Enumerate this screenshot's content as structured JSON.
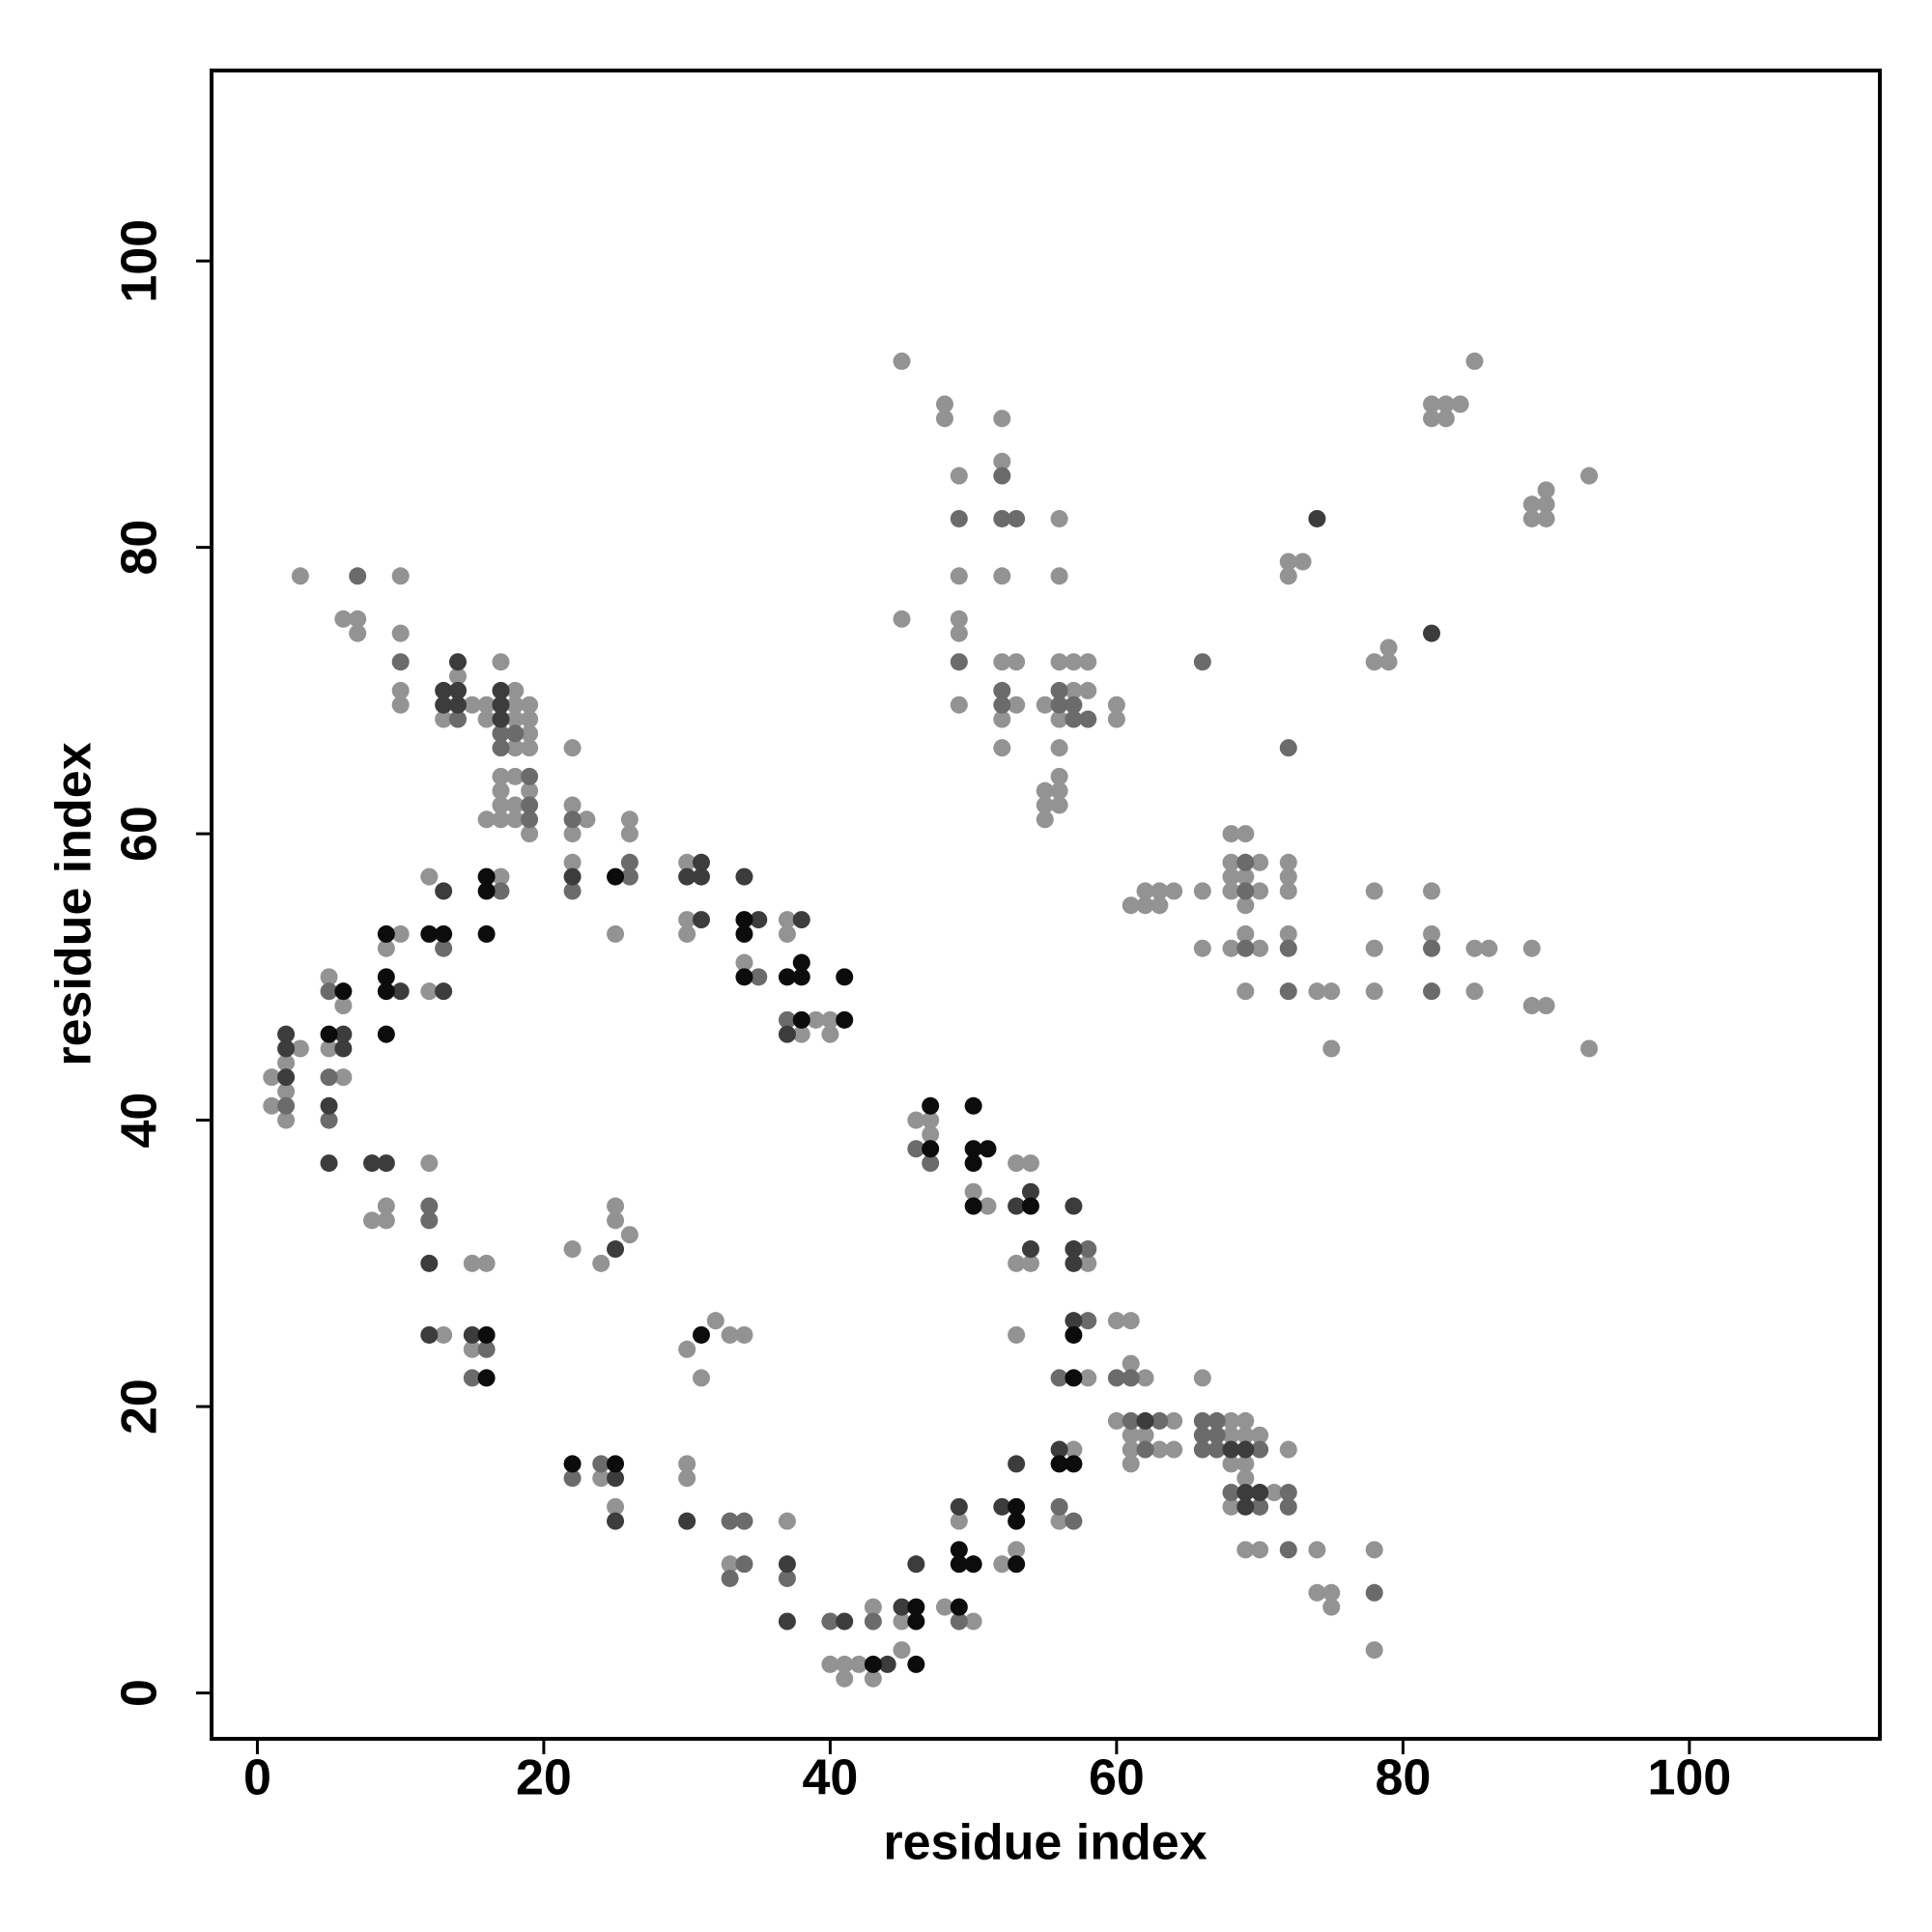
{
  "chart_data": {
    "type": "scatter",
    "x_label": "residue index",
    "y_label": "residue index",
    "xlim": [
      -3.2,
      113.3
    ],
    "ylim": [
      -3.2,
      113.3
    ],
    "xticks": [
      0,
      20,
      40,
      60,
      80,
      100
    ],
    "yticks": [
      0,
      20,
      40,
      60,
      80,
      100
    ],
    "series": [
      {
        "color": "#939393",
        "x": [
          3,
          10,
          6,
          7,
          7,
          10,
          10,
          10,
          14,
          13,
          15,
          16,
          16,
          17,
          18,
          18,
          18,
          18,
          19,
          19,
          19,
          19,
          17,
          18,
          17,
          19,
          17,
          18,
          16,
          17,
          18,
          19,
          22,
          22,
          22,
          23,
          26,
          26,
          22,
          25,
          30,
          30,
          30,
          37,
          37,
          34,
          39,
          40,
          38,
          40,
          12,
          17,
          10,
          9,
          12,
          5,
          6,
          3,
          2,
          5,
          1,
          6,
          2,
          1,
          2,
          12,
          9,
          8,
          9,
          15,
          16,
          13,
          15,
          22,
          24,
          25,
          25,
          26,
          24,
          25,
          30,
          32,
          31,
          33,
          34,
          30,
          30,
          33,
          37,
          40,
          41,
          42,
          41,
          43,
          43,
          45,
          45,
          48,
          50,
          49,
          52,
          53,
          57,
          56,
          46,
          47,
          47,
          50,
          51,
          53,
          54,
          53,
          54,
          53,
          58,
          58,
          60,
          61,
          61,
          62,
          60,
          64,
          61,
          62,
          61,
          63,
          64,
          61,
          66,
          68,
          68,
          69,
          69,
          70,
          68,
          69,
          69,
          68,
          71,
          72,
          69,
          70,
          74,
          74,
          75,
          75,
          78,
          78,
          45,
          48,
          48,
          52,
          49,
          52,
          56,
          49,
          52,
          56,
          45,
          49,
          49,
          52,
          53,
          49,
          52,
          53,
          52,
          55,
          56,
          57,
          58,
          57,
          58,
          56,
          60,
          60,
          56,
          56,
          56,
          55,
          56,
          55,
          55,
          72,
          73,
          72,
          78,
          79,
          79,
          82,
          83,
          84,
          82,
          83,
          85,
          89,
          90,
          89,
          90,
          90,
          93,
          61,
          62,
          62,
          63,
          63,
          64,
          66,
          66,
          68,
          69,
          68,
          70,
          68,
          69,
          68,
          70,
          69,
          68,
          69,
          70,
          69,
          72,
          72,
          72,
          72,
          74,
          75,
          75,
          78,
          78,
          78,
          82,
          82,
          85,
          86,
          85,
          89,
          89,
          90,
          93
        ],
        "y": [
          78,
          78,
          75,
          75,
          74,
          74,
          70,
          69,
          71,
          68,
          69,
          69,
          68,
          72,
          70,
          69,
          68,
          66,
          69,
          68,
          67,
          66,
          64,
          64,
          63,
          63,
          62,
          62,
          61,
          61,
          61,
          60,
          66,
          62,
          60,
          61,
          61,
          60,
          58,
          53,
          58,
          54,
          53,
          54,
          53,
          51,
          47,
          47,
          46,
          46,
          57,
          57,
          53,
          52,
          49,
          50,
          48,
          45,
          44,
          45,
          43,
          43,
          42,
          41,
          40,
          37,
          34,
          33,
          33,
          30,
          30,
          25,
          24,
          31,
          30,
          34,
          33,
          32,
          15,
          13,
          24,
          26,
          22,
          25,
          25,
          16,
          15,
          9,
          12,
          2,
          2,
          2,
          1,
          1,
          6,
          5,
          3,
          6,
          5,
          12,
          9,
          10,
          17,
          12,
          40,
          40,
          39,
          35,
          34,
          37,
          37,
          30,
          30,
          25,
          30,
          22,
          26,
          26,
          23,
          22,
          19,
          19,
          18,
          18,
          17,
          17,
          17,
          16,
          22,
          19,
          18,
          19,
          18,
          18,
          16,
          16,
          15,
          13,
          14,
          17,
          10,
          10,
          10,
          7,
          7,
          6,
          10,
          3,
          93,
          90,
          89,
          89,
          85,
          86,
          82,
          78,
          78,
          78,
          75,
          75,
          74,
          72,
          72,
          69,
          68,
          69,
          66,
          69,
          72,
          72,
          72,
          70,
          70,
          68,
          69,
          68,
          66,
          64,
          63,
          63,
          62,
          62,
          61,
          79,
          79,
          78,
          72,
          73,
          72,
          90,
          90,
          90,
          89,
          89,
          93,
          83,
          84,
          82,
          83,
          82,
          85,
          55,
          56,
          55,
          56,
          55,
          56,
          56,
          52,
          60,
          60,
          58,
          58,
          57,
          57,
          56,
          56,
          55,
          52,
          53,
          52,
          49,
          58,
          57,
          56,
          53,
          49,
          49,
          45,
          56,
          52,
          49,
          56,
          53,
          52,
          52,
          49,
          52,
          48,
          48,
          45
        ]
      },
      {
        "color": "#6b6b6b",
        "x": [
          7,
          10,
          14,
          17,
          17,
          18,
          19,
          19,
          19,
          22,
          22,
          26,
          26,
          35,
          37,
          17,
          13,
          5,
          5,
          2,
          5,
          12,
          12,
          16,
          15,
          22,
          24,
          33,
          34,
          34,
          33,
          37,
          40,
          43,
          49,
          56,
          57,
          46,
          47,
          58,
          58,
          56,
          60,
          61,
          61,
          63,
          62,
          66,
          66,
          66,
          67,
          67,
          67,
          70,
          68,
          70,
          72,
          72,
          72,
          78,
          52,
          49,
          52,
          53,
          49,
          52,
          52,
          56,
          56,
          57,
          57,
          58,
          66,
          72,
          69,
          69,
          69,
          72,
          72,
          82,
          82
        ],
        "y": [
          78,
          72,
          68,
          67,
          66,
          67,
          64,
          62,
          61,
          61,
          56,
          58,
          57,
          50,
          47,
          56,
          52,
          49,
          43,
          41,
          40,
          34,
          33,
          24,
          22,
          15,
          16,
          12,
          12,
          9,
          8,
          8,
          5,
          5,
          5,
          13,
          12,
          38,
          37,
          31,
          26,
          22,
          22,
          22,
          19,
          19,
          17,
          19,
          18,
          17,
          19,
          18,
          17,
          17,
          14,
          13,
          14,
          13,
          10,
          7,
          85,
          82,
          82,
          82,
          72,
          70,
          69,
          70,
          69,
          69,
          68,
          68,
          72,
          66,
          58,
          56,
          52,
          52,
          49,
          52,
          49
        ]
      },
      {
        "color": "#3c3c3c",
        "x": [
          14,
          13,
          14,
          13,
          14,
          17,
          17,
          17,
          22,
          31,
          30,
          31,
          31,
          34,
          35,
          38,
          37,
          13,
          10,
          13,
          2,
          2,
          6,
          6,
          2,
          5,
          5,
          8,
          9,
          12,
          12,
          15,
          25,
          25,
          25,
          30,
          37,
          37,
          41,
          44,
          45,
          46,
          49,
          52,
          53,
          56,
          53,
          54,
          54,
          57,
          57,
          57,
          57,
          62,
          68,
          69,
          69,
          70,
          69,
          74,
          82
        ],
        "y": [
          72,
          70,
          70,
          69,
          69,
          70,
          69,
          68,
          57,
          58,
          57,
          57,
          54,
          57,
          54,
          54,
          46,
          56,
          49,
          49,
          46,
          45,
          46,
          45,
          43,
          41,
          37,
          37,
          37,
          30,
          25,
          25,
          31,
          15,
          12,
          12,
          9,
          5,
          5,
          2,
          6,
          9,
          13,
          13,
          16,
          17,
          34,
          35,
          31,
          34,
          31,
          30,
          26,
          19,
          17,
          17,
          14,
          14,
          13,
          82,
          74
        ]
      },
      {
        "color": "#0c0c0c",
        "x": [
          25,
          34,
          34,
          34,
          37,
          38,
          38,
          38,
          41,
          41,
          16,
          16,
          9,
          12,
          13,
          16,
          9,
          9,
          6,
          5,
          9,
          16,
          16,
          22,
          25,
          31,
          43,
          46,
          46,
          46,
          49,
          49,
          49,
          50,
          53,
          53,
          53,
          56,
          57,
          47,
          47,
          50,
          50,
          51,
          50,
          50,
          54,
          57,
          57
        ],
        "y": [
          57,
          54,
          53,
          50,
          50,
          51,
          50,
          47,
          47,
          50,
          57,
          56,
          53,
          53,
          53,
          53,
          50,
          49,
          49,
          46,
          46,
          25,
          22,
          16,
          16,
          25,
          2,
          6,
          5,
          2,
          6,
          10,
          9,
          9,
          13,
          12,
          9,
          16,
          16,
          41,
          38,
          41,
          38,
          38,
          37,
          34,
          34,
          25,
          22
        ]
      }
    ]
  }
}
